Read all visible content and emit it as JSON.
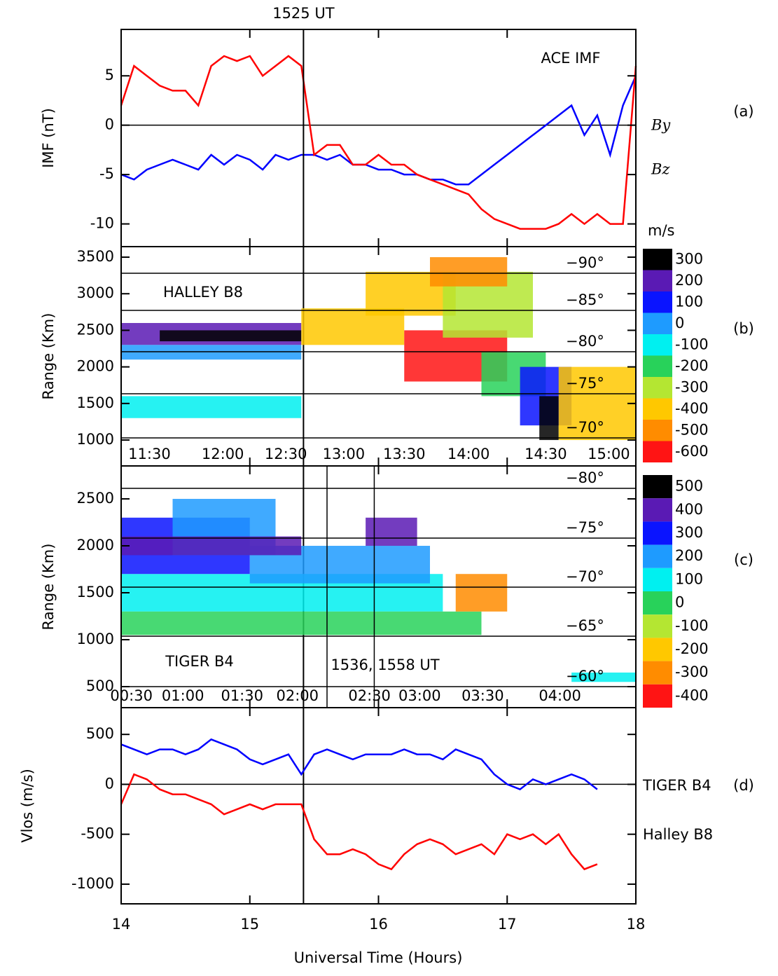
{
  "chart_data": [
    {
      "type": "line",
      "title": "ACE IMF",
      "panel_label": "(a)",
      "ylabel": "IMF (nT)",
      "xlim": [
        14,
        18
      ],
      "ylim": [
        -12.3,
        9.7
      ],
      "yticks": [
        -10,
        -5,
        0,
        5
      ],
      "zero_line": true,
      "vline": {
        "value": 15.417,
        "label": "1525 UT"
      },
      "x": [
        14.0,
        14.1,
        14.2,
        14.3,
        14.4,
        14.5,
        14.6,
        14.7,
        14.8,
        14.9,
        15.0,
        15.1,
        15.2,
        15.3,
        15.4,
        15.5,
        15.6,
        15.7,
        15.8,
        15.9,
        16.0,
        16.1,
        16.2,
        16.3,
        16.4,
        16.5,
        16.6,
        16.7,
        16.8,
        16.9,
        17.0,
        17.1,
        17.2,
        17.3,
        17.4,
        17.5,
        17.6,
        17.7,
        17.8,
        17.9,
        18.0
      ],
      "series": [
        {
          "name": "By",
          "color": "#0000ff",
          "values": [
            -5,
            -5.5,
            -4.5,
            -4,
            -3.5,
            -4,
            -4.5,
            -3,
            -4,
            -3,
            -3.5,
            -4.5,
            -3,
            -3.5,
            -3,
            -3,
            -3.5,
            -3,
            -4,
            -4,
            -4.5,
            -4.5,
            -5,
            -5,
            -5.5,
            -5.5,
            -6,
            -6,
            -5,
            -4,
            -3,
            -2,
            -1,
            0,
            1,
            2,
            -1,
            1,
            -3,
            2,
            5
          ]
        },
        {
          "name": "Bz",
          "color": "#ff0000",
          "values": [
            2,
            6,
            5,
            4,
            3.5,
            3.5,
            2,
            6,
            7,
            6.5,
            7,
            5,
            6,
            7,
            6,
            -3,
            -2,
            -2,
            -4,
            -4,
            -3,
            -4,
            -4,
            -5,
            -5.5,
            -6,
            -6.5,
            -7,
            -8.5,
            -9.5,
            -10,
            -10.5,
            -10.5,
            -10.5,
            -10,
            -9,
            -10,
            -9,
            -10,
            -10,
            6
          ]
        }
      ]
    },
    {
      "type": "heatmap",
      "title": "HALLEY B8",
      "panel_label": "(b)",
      "ylabel": "Range (Km)",
      "xlim": [
        14,
        18
      ],
      "ylim": [
        646,
        3644
      ],
      "yticks": [
        1000,
        1500,
        2000,
        2500,
        3000,
        3500
      ],
      "time_ticks": [
        {
          "value": 14.22,
          "label": "11:30"
        },
        {
          "value": 14.79,
          "label": "12:00"
        },
        {
          "value": 15.28,
          "label": "12:30"
        },
        {
          "value": 15.73,
          "label": "13:00"
        },
        {
          "value": 16.2,
          "label": "13:30"
        },
        {
          "value": 16.7,
          "label": "14:00"
        },
        {
          "value": 17.3,
          "label": "14:30"
        },
        {
          "value": 17.79,
          "label": "15:00"
        }
      ],
      "lat_ticks": [
        {
          "value": 3280,
          "label": "−90°"
        },
        {
          "value": 2772,
          "label": "−85°"
        },
        {
          "value": 2207,
          "label": "−80°"
        },
        {
          "value": 1632,
          "label": "−75°"
        },
        {
          "value": 1029,
          "label": "−70°"
        }
      ],
      "cells": [
        {
          "t": [
            14.0,
            15.4
          ],
          "range": [
            2300,
            2600
          ],
          "value": 250
        },
        {
          "t": [
            14.3,
            15.4
          ],
          "range": [
            2350,
            2500
          ],
          "value": 300
        },
        {
          "t": [
            14.0,
            15.4
          ],
          "range": [
            2100,
            2300
          ],
          "value": 0
        },
        {
          "t": [
            14.0,
            15.4
          ],
          "range": [
            1300,
            1600
          ],
          "value": -100
        },
        {
          "t": [
            15.4,
            16.2
          ],
          "range": [
            2300,
            2800
          ],
          "value": -400
        },
        {
          "t": [
            15.9,
            16.6
          ],
          "range": [
            2700,
            3300
          ],
          "value": -400
        },
        {
          "t": [
            16.2,
            17.0
          ],
          "range": [
            1800,
            2500
          ],
          "value": -600
        },
        {
          "t": [
            16.5,
            17.2
          ],
          "range": [
            2400,
            3300
          ],
          "value": -300
        },
        {
          "t": [
            16.8,
            17.3
          ],
          "range": [
            1600,
            2200
          ],
          "value": -200
        },
        {
          "t": [
            17.1,
            17.5
          ],
          "range": [
            1200,
            2000
          ],
          "value": 100
        },
        {
          "t": [
            17.25,
            17.4
          ],
          "range": [
            1000,
            1600
          ],
          "value": 300
        },
        {
          "t": [
            17.4,
            18.0
          ],
          "range": [
            1000,
            2000
          ],
          "value": -400
        },
        {
          "t": [
            16.4,
            17.0
          ],
          "range": [
            3100,
            3500
          ],
          "value": -500
        }
      ],
      "colorbar": {
        "unit": "m/s",
        "ticks": [
          300,
          200,
          100,
          0,
          -100,
          -200,
          -300,
          -400,
          -500,
          -600
        ],
        "colors": [
          "#000000",
          "#5a1ab4",
          "#0a14ff",
          "#1e9bff",
          "#00f0f0",
          "#28d25a",
          "#b4e632",
          "#ffc800",
          "#ff8c00",
          "#ff1414"
        ]
      }
    },
    {
      "type": "heatmap",
      "title": "TIGER B4",
      "panel_label": "(c)",
      "ylabel": "Range (Km)",
      "xlim": [
        14,
        18
      ],
      "ylim": [
        276,
        2851
      ],
      "yticks": [
        500,
        1000,
        1500,
        2000,
        2500
      ],
      "vlines": {
        "values": [
          15.6,
          15.967
        ],
        "label": "1536, 1558 UT"
      },
      "time_ticks": [
        {
          "value": 14.08,
          "label": "00:30"
        },
        {
          "value": 14.48,
          "label": "01:00"
        },
        {
          "value": 14.94,
          "label": "01:30"
        },
        {
          "value": 15.37,
          "label": "02:00"
        },
        {
          "value": 15.93,
          "label": "02:30"
        },
        {
          "value": 16.32,
          "label": "03:00"
        },
        {
          "value": 16.81,
          "label": "03:30"
        },
        {
          "value": 17.41,
          "label": "04:00"
        }
      ],
      "lat_ticks": [
        {
          "value": 2612,
          "label": "−80°"
        },
        {
          "value": 2082,
          "label": "−75°"
        },
        {
          "value": 1560,
          "label": "−70°"
        },
        {
          "value": 1037,
          "label": "−65°"
        },
        {
          "value": 500,
          "label": "−60°"
        }
      ],
      "cells": [
        {
          "t": [
            14.0,
            16.5
          ],
          "range": [
            1300,
            1700
          ],
          "value": 100
        },
        {
          "t": [
            14.0,
            16.8
          ],
          "range": [
            1050,
            1300
          ],
          "value": 0
        },
        {
          "t": [
            14.0,
            15.0
          ],
          "range": [
            1700,
            2300
          ],
          "value": 300
        },
        {
          "t": [
            14.4,
            15.2
          ],
          "range": [
            1900,
            2500
          ],
          "value": 200
        },
        {
          "t": [
            15.0,
            16.4
          ],
          "range": [
            1600,
            2000
          ],
          "value": 200
        },
        {
          "t": [
            14.0,
            15.4
          ],
          "range": [
            1900,
            2100
          ],
          "value": 400
        },
        {
          "t": [
            15.9,
            16.3
          ],
          "range": [
            2000,
            2300
          ],
          "value": 400
        },
        {
          "t": [
            16.6,
            17.0
          ],
          "range": [
            1300,
            1700
          ],
          "value": -300
        },
        {
          "t": [
            17.5,
            18.0
          ],
          "range": [
            550,
            650
          ],
          "value": 100
        }
      ],
      "colorbar": {
        "ticks": [
          500,
          400,
          300,
          200,
          100,
          0,
          -100,
          -200,
          -300,
          -400
        ],
        "colors": [
          "#000000",
          "#5a1ab4",
          "#0a14ff",
          "#1e9bff",
          "#00f0f0",
          "#28d25a",
          "#b4e632",
          "#ffc800",
          "#ff8c00",
          "#ff1414"
        ]
      }
    },
    {
      "type": "line",
      "panel_label": "(d)",
      "ylabel": "Vlos (m/s)",
      "xlabel": "Universal Time (Hours)",
      "xlim": [
        14,
        18
      ],
      "ylim": [
        -1197,
        768
      ],
      "yticks": [
        -1000,
        -500,
        0,
        500
      ],
      "xticks": [
        14,
        15,
        16,
        17,
        18
      ],
      "zero_line": true,
      "x": [
        14.0,
        14.1,
        14.2,
        14.3,
        14.4,
        14.5,
        14.6,
        14.7,
        14.8,
        14.9,
        15.0,
        15.1,
        15.2,
        15.3,
        15.4,
        15.5,
        15.6,
        15.7,
        15.8,
        15.9,
        16.0,
        16.1,
        16.2,
        16.3,
        16.4,
        16.5,
        16.6,
        16.7,
        16.8,
        16.9,
        17.0,
        17.1,
        17.2,
        17.3,
        17.4,
        17.5,
        17.6,
        17.7,
        17.8,
        17.9,
        18.0
      ],
      "series": [
        {
          "name": "TIGER B4",
          "color": "#0000ff",
          "values": [
            400,
            350,
            300,
            350,
            350,
            300,
            350,
            450,
            400,
            350,
            250,
            200,
            250,
            300,
            100,
            300,
            350,
            300,
            250,
            300,
            300,
            300,
            350,
            300,
            300,
            250,
            350,
            300,
            250,
            100,
            0,
            -50,
            50,
            0,
            50,
            100,
            50,
            -50,
            null,
            null,
            null
          ]
        },
        {
          "name": "Halley B8",
          "color": "#ff0000",
          "values": [
            -200,
            100,
            50,
            -50,
            -100,
            -100,
            -150,
            -200,
            -300,
            -250,
            -200,
            -250,
            -200,
            -200,
            -200,
            -550,
            -700,
            -700,
            -650,
            -700,
            -800,
            -850,
            -700,
            -600,
            -550,
            -600,
            -700,
            -650,
            -600,
            -700,
            -500,
            -550,
            -500,
            -600,
            -500,
            -700,
            -850,
            -800,
            null,
            null,
            null
          ]
        }
      ]
    }
  ]
}
